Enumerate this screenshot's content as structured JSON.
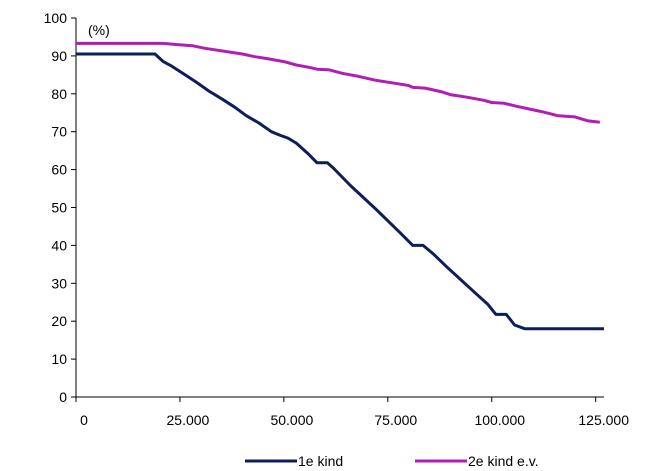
{
  "chart_data": {
    "type": "line",
    "title": "",
    "xlabel": "",
    "ylabel": "",
    "unit_label": "(%)",
    "xlim": [
      0,
      127000
    ],
    "ylim": [
      0,
      100
    ],
    "x_ticks": [
      0,
      25000,
      50000,
      75000,
      100000,
      125000
    ],
    "x_tick_labels": [
      "0",
      "25.000",
      "50.000",
      "75.000",
      "100.000",
      "125.000"
    ],
    "y_ticks": [
      0,
      10,
      20,
      30,
      40,
      50,
      60,
      70,
      80,
      90,
      100
    ],
    "y_tick_labels": [
      "0",
      "10",
      "20",
      "30",
      "40",
      "50",
      "60",
      "70",
      "80",
      "90",
      "100"
    ],
    "grid": false,
    "legend_position": "bottom",
    "series": [
      {
        "name": "1e kind",
        "color": "#0c1e5b",
        "points": [
          [
            0,
            90.5
          ],
          [
            19000,
            90.5
          ],
          [
            21000,
            88.5
          ],
          [
            23000,
            87.3
          ],
          [
            26000,
            85.2
          ],
          [
            29000,
            83.0
          ],
          [
            32000,
            80.7
          ],
          [
            35000,
            78.7
          ],
          [
            38000,
            76.6
          ],
          [
            41000,
            74.2
          ],
          [
            44000,
            72.3
          ],
          [
            47000,
            70.0
          ],
          [
            49000,
            69.1
          ],
          [
            51000,
            68.3
          ],
          [
            53000,
            67.0
          ],
          [
            56000,
            64.0
          ],
          [
            58000,
            61.8
          ],
          [
            60500,
            61.8
          ],
          [
            62000,
            60.3
          ],
          [
            66000,
            55.8
          ],
          [
            72000,
            49.7
          ],
          [
            78000,
            43.3
          ],
          [
            81000,
            40.0
          ],
          [
            83500,
            40.0
          ],
          [
            86000,
            37.7
          ],
          [
            89000,
            34.5
          ],
          [
            92000,
            31.5
          ],
          [
            96000,
            27.5
          ],
          [
            99000,
            24.5
          ],
          [
            101000,
            21.8
          ],
          [
            103500,
            21.8
          ],
          [
            105500,
            19.0
          ],
          [
            108000,
            18.0
          ],
          [
            127000,
            18.0
          ]
        ]
      },
      {
        "name": "2e kind e.v.",
        "color": "#b11eb5",
        "points": [
          [
            0,
            93.3
          ],
          [
            21000,
            93.3
          ],
          [
            24000,
            93.0
          ],
          [
            28000,
            92.7
          ],
          [
            31000,
            92.0
          ],
          [
            34000,
            91.5
          ],
          [
            37000,
            91.0
          ],
          [
            40000,
            90.5
          ],
          [
            43000,
            89.8
          ],
          [
            46000,
            89.3
          ],
          [
            50000,
            88.5
          ],
          [
            53000,
            87.6
          ],
          [
            56000,
            87.0
          ],
          [
            58000,
            86.5
          ],
          [
            61000,
            86.3
          ],
          [
            64000,
            85.4
          ],
          [
            68000,
            84.6
          ],
          [
            72000,
            83.6
          ],
          [
            76000,
            82.9
          ],
          [
            80000,
            82.2
          ],
          [
            81000,
            81.7
          ],
          [
            84000,
            81.5
          ],
          [
            88000,
            80.5
          ],
          [
            90000,
            79.8
          ],
          [
            94000,
            79.1
          ],
          [
            98000,
            78.3
          ],
          [
            100000,
            77.7
          ],
          [
            103000,
            77.5
          ],
          [
            106000,
            76.7
          ],
          [
            109000,
            76.0
          ],
          [
            112000,
            75.3
          ],
          [
            116000,
            74.2
          ],
          [
            120000,
            73.9
          ],
          [
            123000,
            72.9
          ],
          [
            126000,
            72.5
          ]
        ]
      }
    ]
  }
}
